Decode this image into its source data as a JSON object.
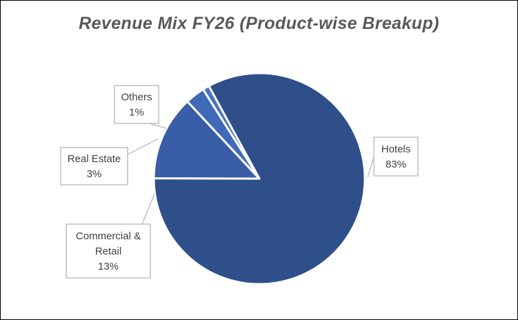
{
  "chart_data": {
    "type": "pie",
    "title": "Revenue Mix FY26 (Product-wise Breakup)",
    "slices": [
      {
        "label": "Hotels",
        "value": 83,
        "value_label": "83%",
        "color": "#2f4f8a"
      },
      {
        "label": "Commercial & Retail",
        "label_lines": [
          "Commercial &",
          "Retail"
        ],
        "value": 13,
        "value_label": "13%",
        "color": "#3a5da8"
      },
      {
        "label": "Real Estate",
        "value": 3,
        "value_label": "3%",
        "color": "#4069b8"
      },
      {
        "label": "Others",
        "value": 1,
        "value_label": "1%",
        "color": "#4a72c2"
      }
    ],
    "legend": "none",
    "data_labels": "callouts"
  }
}
